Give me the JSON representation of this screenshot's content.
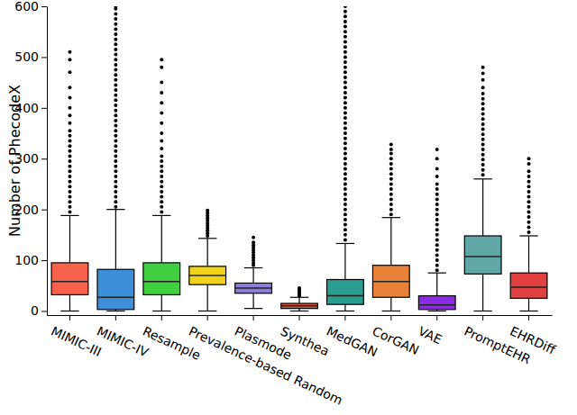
{
  "chart_data": {
    "type": "box",
    "y_label": "Number of PhecodeX",
    "categories": [
      "MIMIC-III",
      "MIMIC-IV",
      "Resample",
      "Prevalence-based Random",
      "Plasmode",
      "Synthea",
      "MedGAN",
      "CorGAN",
      "VAE",
      "PromptEHR",
      "EHRDiff"
    ],
    "colors": [
      "#f7624b",
      "#3c8fd8",
      "#3fcf3f",
      "#f2d31b",
      "#8b7fd9",
      "#d9532b",
      "#2a9d8f",
      "#e8823a",
      "#8a2be2",
      "#5fa8a6",
      "#e0403f"
    ],
    "boxes": [
      {
        "whisker_low": 0,
        "q1": 32,
        "median": 58,
        "q3": 95,
        "whisker_high": 188,
        "outliers": [
          195,
          205,
          215,
          225,
          235,
          245,
          255,
          265,
          275,
          285,
          295,
          305,
          315,
          325,
          335,
          345,
          355,
          370,
          385,
          400,
          420,
          440,
          470,
          495,
          510
        ]
      },
      {
        "whisker_low": 0,
        "q1": 3,
        "median": 27,
        "q3": 82,
        "whisker_high": 200,
        "outliers": [
          205,
          215,
          225,
          235,
          245,
          255,
          265,
          275,
          285,
          295,
          305,
          315,
          325,
          335,
          345,
          355,
          365,
          375,
          385,
          395,
          405,
          415,
          425,
          435,
          445,
          455,
          465,
          475,
          485,
          495,
          505,
          515,
          525,
          535,
          545,
          555,
          565,
          575,
          585,
          595,
          600
        ]
      },
      {
        "whisker_low": 0,
        "q1": 32,
        "median": 58,
        "q3": 95,
        "whisker_high": 188,
        "outliers": [
          195,
          205,
          215,
          225,
          235,
          245,
          255,
          265,
          275,
          285,
          295,
          305,
          320,
          335,
          350,
          370,
          390,
          410,
          430,
          450,
          480,
          495
        ]
      },
      {
        "whisker_low": 0,
        "q1": 52,
        "median": 70,
        "q3": 88,
        "whisker_high": 143,
        "outliers": [
          148,
          153,
          158,
          163,
          168,
          173,
          178,
          183,
          188,
          193,
          198
        ]
      },
      {
        "whisker_low": 5,
        "q1": 35,
        "median": 45,
        "q3": 55,
        "whisker_high": 85,
        "outliers": [
          90,
          95,
          100,
          105,
          110,
          115,
          120,
          125,
          130,
          135,
          145
        ]
      },
      {
        "whisker_low": 0,
        "q1": 5,
        "median": 10,
        "q3": 15,
        "whisker_high": 27,
        "outliers": [
          30,
          33,
          36,
          39,
          42,
          45
        ]
      },
      {
        "whisker_low": 0,
        "q1": 13,
        "median": 30,
        "q3": 62,
        "whisker_high": 133,
        "outliers": [
          140,
          150,
          160,
          170,
          180,
          190,
          200,
          210,
          220,
          230,
          240,
          250,
          260,
          270,
          280,
          290,
          300,
          310,
          320,
          330,
          340,
          350,
          360,
          370,
          380,
          390,
          400,
          410,
          420,
          430,
          440,
          450,
          460,
          470,
          480,
          490,
          500,
          510,
          520,
          530,
          540,
          550,
          560,
          570,
          580,
          590,
          600
        ]
      },
      {
        "whisker_low": 0,
        "q1": 27,
        "median": 58,
        "q3": 90,
        "whisker_high": 184,
        "outliers": [
          190,
          200,
          210,
          220,
          230,
          240,
          250,
          260,
          270,
          280,
          290,
          300,
          310,
          318,
          328
        ]
      },
      {
        "whisker_low": 0,
        "q1": 3,
        "median": 12,
        "q3": 30,
        "whisker_high": 75,
        "outliers": [
          80,
          90,
          100,
          110,
          120,
          130,
          140,
          150,
          160,
          170,
          180,
          190,
          200,
          210,
          220,
          230,
          240,
          250,
          265,
          280,
          300,
          318
        ]
      },
      {
        "whisker_low": 0,
        "q1": 73,
        "median": 107,
        "q3": 148,
        "whisker_high": 260,
        "outliers": [
          268,
          278,
          288,
          298,
          308,
          318,
          328,
          338,
          348,
          358,
          368,
          378,
          388,
          398,
          408,
          418,
          428,
          440,
          455,
          468,
          480
        ]
      },
      {
        "whisker_low": 0,
        "q1": 25,
        "median": 47,
        "q3": 75,
        "whisker_high": 148,
        "outliers": [
          155,
          165,
          175,
          185,
          195,
          205,
          215,
          225,
          235,
          245,
          255,
          265,
          275,
          290,
          300
        ]
      }
    ],
    "ylim": [
      -8,
      600
    ],
    "yticks": [
      0,
      100,
      200,
      300,
      400,
      500,
      600
    ],
    "grid": false
  }
}
